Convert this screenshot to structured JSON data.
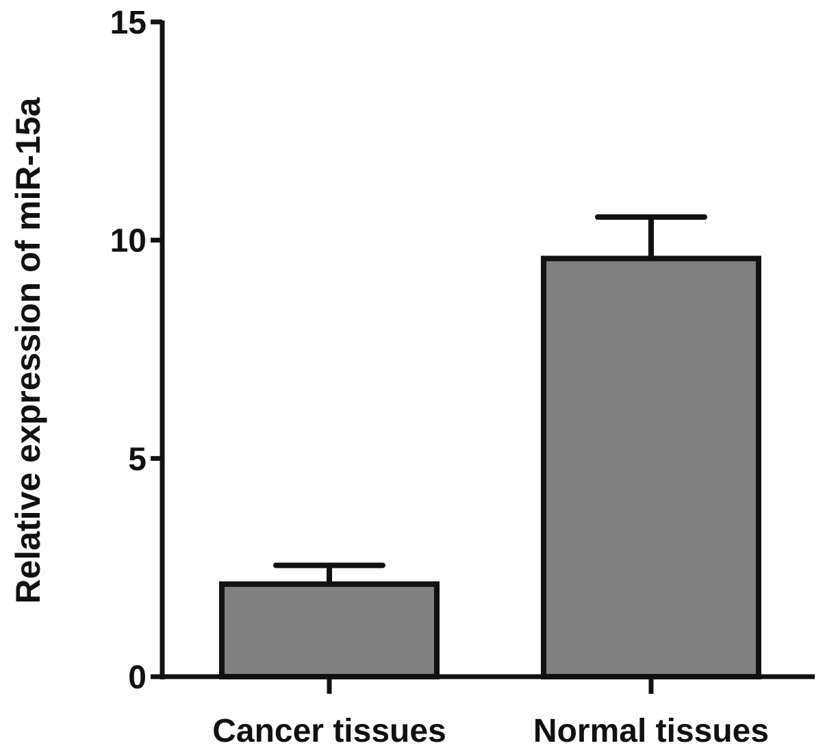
{
  "chart_data": {
    "type": "bar",
    "title": "",
    "xlabel": "",
    "ylabel": "Relative expression of miR-15a",
    "ylim": [
      0,
      15
    ],
    "yticks": [
      0,
      5,
      10,
      15
    ],
    "ytick_labels": [
      "0",
      "5",
      "10",
      "15"
    ],
    "categories": [
      "Cancer tissues",
      "Normal tissues"
    ],
    "values": [
      2.12,
      9.58
    ],
    "error_upper": [
      0.43,
      0.95
    ],
    "grid": false,
    "bar_color": "#808080",
    "edge_color": "#111111"
  }
}
